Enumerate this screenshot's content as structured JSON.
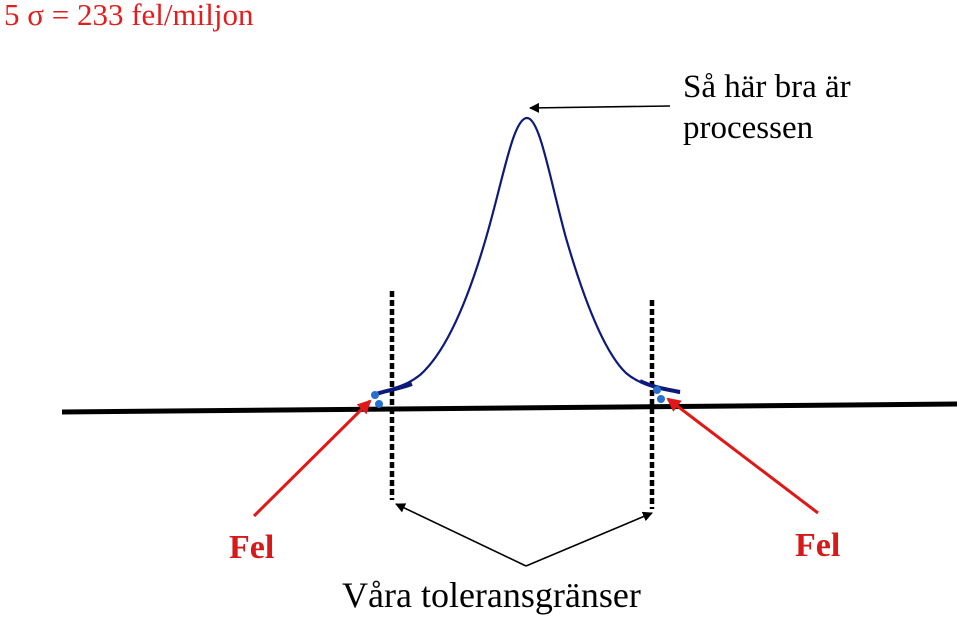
{
  "title": "5 σ = 233 fel/miljon",
  "annotation": {
    "line1": "Så här bra är",
    "line2": "processen"
  },
  "defects": {
    "left_label": "Fel",
    "right_label": "Fel"
  },
  "tolerance_label": "Våra toleransgränser",
  "colors": {
    "title": "#e21d1d",
    "defect_label": "#d61a1a",
    "defect_arrow": "#e01818",
    "curve": "#0d1a7a",
    "defect_marker": "#2670d2",
    "axis": "#000000",
    "annotation_text": "#000000"
  }
}
